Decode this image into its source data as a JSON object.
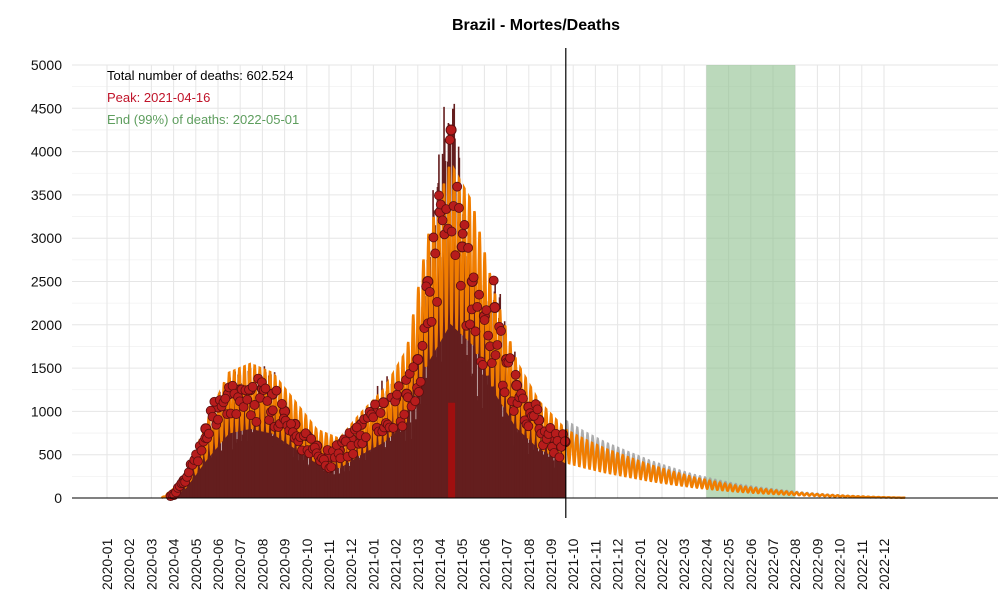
{
  "chart_data": {
    "type": "line",
    "title": "Brazil - Mortes/Deaths",
    "xlabel": "",
    "ylabel": "",
    "ylim": [
      0,
      5000
    ],
    "yticks": [
      0,
      500,
      1000,
      1500,
      2000,
      2500,
      3000,
      3500,
      4000,
      4500,
      5000
    ],
    "x_ticks": [
      "2020-01",
      "2020-02",
      "2020-03",
      "2020-04",
      "2020-05",
      "2020-06",
      "2020-07",
      "2020-08",
      "2020-09",
      "2020-10",
      "2020-11",
      "2020-12",
      "2021-01",
      "2021-02",
      "2021-03",
      "2021-04",
      "2021-05",
      "2021-06",
      "2021-07",
      "2021-08",
      "2021-09",
      "2021-10",
      "2021-11",
      "2021-12",
      "2022-01",
      "2022-02",
      "2022-03",
      "2022-04",
      "2022-05",
      "2022-06",
      "2022-07",
      "2022-08",
      "2022-09",
      "2022-10",
      "2022-11",
      "2022-12"
    ],
    "grid": true,
    "annotations": {
      "total": "Total number of deaths: 602.524",
      "peak": "Peak: 2021-04-16",
      "end": "End (99%) of deaths: 2022-05-01"
    },
    "today_line": "2021-09-21",
    "end_band": {
      "start": "2022-04-01",
      "end": "2022-08-01"
    },
    "series": [
      {
        "kind": "observed_daily_points",
        "points": [
          {
            "x": "2020-03-15",
            "y": 0
          },
          {
            "x": "2020-04-01",
            "y": 40
          },
          {
            "x": "2020-04-15",
            "y": 200
          },
          {
            "x": "2020-05-01",
            "y": 450
          },
          {
            "x": "2020-05-15",
            "y": 800
          },
          {
            "x": "2020-06-01",
            "y": 1050
          },
          {
            "x": "2020-06-15",
            "y": 1200
          },
          {
            "x": "2020-07-01",
            "y": 1250
          },
          {
            "x": "2020-07-15",
            "y": 1250
          },
          {
            "x": "2020-08-01",
            "y": 1260
          },
          {
            "x": "2020-08-15",
            "y": 1200
          },
          {
            "x": "2020-09-01",
            "y": 1000
          },
          {
            "x": "2020-09-15",
            "y": 850
          },
          {
            "x": "2020-10-01",
            "y": 720
          },
          {
            "x": "2020-10-15",
            "y": 600
          },
          {
            "x": "2020-11-01",
            "y": 480
          },
          {
            "x": "2020-11-15",
            "y": 550
          },
          {
            "x": "2020-12-01",
            "y": 680
          },
          {
            "x": "2020-12-15",
            "y": 850
          },
          {
            "x": "2021-01-01",
            "y": 1000
          },
          {
            "x": "2021-01-15",
            "y": 1100
          },
          {
            "x": "2021-02-01",
            "y": 1150
          },
          {
            "x": "2021-02-15",
            "y": 1200
          },
          {
            "x": "2021-03-01",
            "y": 1600
          },
          {
            "x": "2021-03-15",
            "y": 2500
          },
          {
            "x": "2021-04-01",
            "y": 3300
          },
          {
            "x": "2021-04-16",
            "y": 4250
          },
          {
            "x": "2021-05-01",
            "y": 2900
          },
          {
            "x": "2021-05-15",
            "y": 2500
          },
          {
            "x": "2021-06-01",
            "y": 2100
          },
          {
            "x": "2021-06-15",
            "y": 2200
          },
          {
            "x": "2021-07-01",
            "y": 1600
          },
          {
            "x": "2021-07-15",
            "y": 1300
          },
          {
            "x": "2021-08-01",
            "y": 1050
          },
          {
            "x": "2021-08-15",
            "y": 900
          },
          {
            "x": "2021-09-01",
            "y": 700
          },
          {
            "x": "2021-09-20",
            "y": 650
          }
        ]
      },
      {
        "kind": "model_fit_smooth",
        "points": [
          {
            "x": "2020-03-15",
            "y": 0
          },
          {
            "x": "2020-04-15",
            "y": 150
          },
          {
            "x": "2020-05-15",
            "y": 650
          },
          {
            "x": "2020-06-15",
            "y": 1100
          },
          {
            "x": "2020-07-15",
            "y": 1180
          },
          {
            "x": "2020-08-15",
            "y": 1100
          },
          {
            "x": "2020-09-15",
            "y": 850
          },
          {
            "x": "2020-10-15",
            "y": 600
          },
          {
            "x": "2020-11-15",
            "y": 520
          },
          {
            "x": "2020-12-15",
            "y": 750
          },
          {
            "x": "2021-01-15",
            "y": 950
          },
          {
            "x": "2021-02-15",
            "y": 1300
          },
          {
            "x": "2021-03-15",
            "y": 2300
          },
          {
            "x": "2021-04-15",
            "y": 2950
          },
          {
            "x": "2021-05-15",
            "y": 2600
          },
          {
            "x": "2021-06-15",
            "y": 1800
          },
          {
            "x": "2021-07-15",
            "y": 1200
          },
          {
            "x": "2021-08-15",
            "y": 850
          },
          {
            "x": "2021-09-21",
            "y": 600
          },
          {
            "x": "2021-10-15",
            "y": 520
          },
          {
            "x": "2021-11-15",
            "y": 430
          },
          {
            "x": "2021-12-15",
            "y": 360
          },
          {
            "x": "2022-01-15",
            "y": 290
          },
          {
            "x": "2022-02-15",
            "y": 230
          },
          {
            "x": "2022-03-15",
            "y": 180
          },
          {
            "x": "2022-04-15",
            "y": 140
          },
          {
            "x": "2022-05-15",
            "y": 105
          },
          {
            "x": "2022-06-15",
            "y": 80
          },
          {
            "x": "2022-07-15",
            "y": 60
          },
          {
            "x": "2022-08-15",
            "y": 42
          },
          {
            "x": "2022-09-15",
            "y": 28
          },
          {
            "x": "2022-10-15",
            "y": 18
          },
          {
            "x": "2022-11-15",
            "y": 10
          },
          {
            "x": "2022-12-15",
            "y": 5
          },
          {
            "x": "2022-12-31",
            "y": 3
          }
        ]
      }
    ],
    "colors": {
      "points": "#b71c1c",
      "points_edge": "#5a0f0f",
      "stems": "#641e1e",
      "peak_bar": "#a00f0f",
      "model": "#f07d00",
      "projection_gray": "#9e9e9e",
      "band": "#8ebf8e",
      "peak_text": "#c0142a",
      "end_text": "#5e9e5e",
      "total_text": "#000000"
    }
  }
}
